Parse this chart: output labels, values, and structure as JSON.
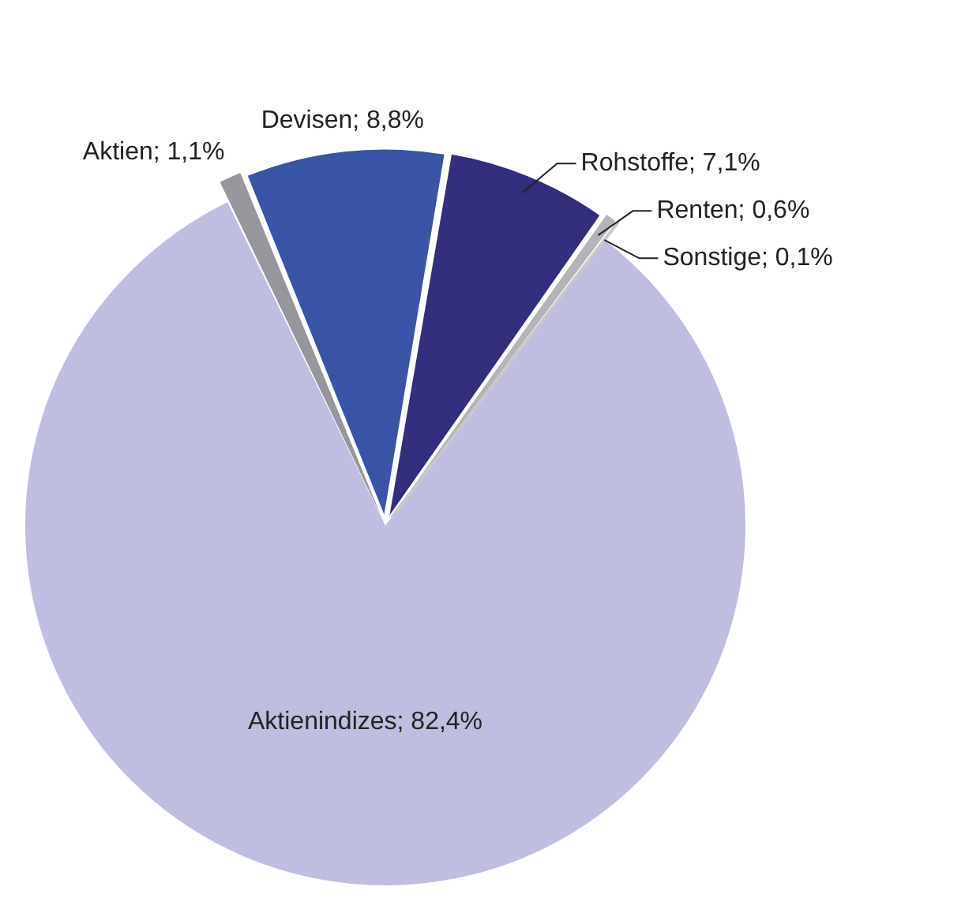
{
  "chart_data": {
    "type": "pie",
    "categories": [
      "Aktienindizes",
      "Aktien",
      "Devisen",
      "Rohstoffe",
      "Renten",
      "Sonstige"
    ],
    "values": [
      82.4,
      1.1,
      8.8,
      7.1,
      0.6,
      0.1
    ],
    "value_labels": [
      "82,4%",
      "1,1%",
      "8,8%",
      "7,1%",
      "0,6%",
      "0,1%"
    ],
    "colors": [
      "#bfbde0",
      "#96979c",
      "#3a54a5",
      "#322e7d",
      "#b3b3b8",
      "#c8c8cc"
    ],
    "legend": false
  }
}
